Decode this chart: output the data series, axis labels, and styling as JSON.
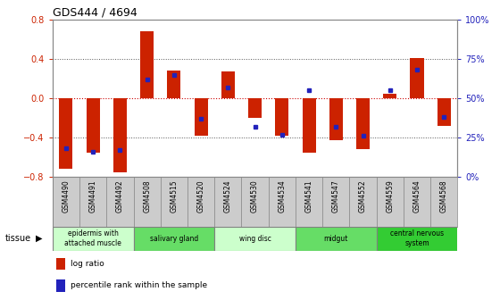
{
  "title": "GDS444 / 4694",
  "samples": [
    "GSM4490",
    "GSM4491",
    "GSM4492",
    "GSM4508",
    "GSM4515",
    "GSM4520",
    "GSM4524",
    "GSM4530",
    "GSM4534",
    "GSM4541",
    "GSM4547",
    "GSM4552",
    "GSM4559",
    "GSM4564",
    "GSM4568"
  ],
  "log_ratio": [
    -0.72,
    -0.55,
    -0.75,
    0.68,
    0.28,
    -0.38,
    0.27,
    -0.2,
    -0.38,
    -0.55,
    -0.43,
    -0.52,
    0.05,
    0.41,
    -0.28
  ],
  "percentile": [
    18,
    16,
    17,
    62,
    65,
    37,
    57,
    32,
    27,
    55,
    32,
    26,
    55,
    68,
    38
  ],
  "ylim": [
    -0.8,
    0.8
  ],
  "yticks_left": [
    -0.8,
    -0.4,
    0.0,
    0.4,
    0.8
  ],
  "yticks_right": [
    0,
    25,
    50,
    75,
    100
  ],
  "bar_color": "#cc2200",
  "dot_color": "#2222bb",
  "zero_line_color": "#cc0000",
  "dot_linewidth": 0.5,
  "bg_color": "#ffffff",
  "tissue_groups": [
    {
      "label": "epidermis with\nattached muscle",
      "start": 0,
      "end": 3,
      "color": "#ccffcc"
    },
    {
      "label": "salivary gland",
      "start": 3,
      "end": 6,
      "color": "#66dd66"
    },
    {
      "label": "wing disc",
      "start": 6,
      "end": 9,
      "color": "#ccffcc"
    },
    {
      "label": "midgut",
      "start": 9,
      "end": 12,
      "color": "#66dd66"
    },
    {
      "label": "central nervous\nsystem",
      "start": 12,
      "end": 15,
      "color": "#33cc33"
    }
  ],
  "legend_log_ratio": "log ratio",
  "legend_percentile": "percentile rank within the sample",
  "sample_bg": "#cccccc"
}
